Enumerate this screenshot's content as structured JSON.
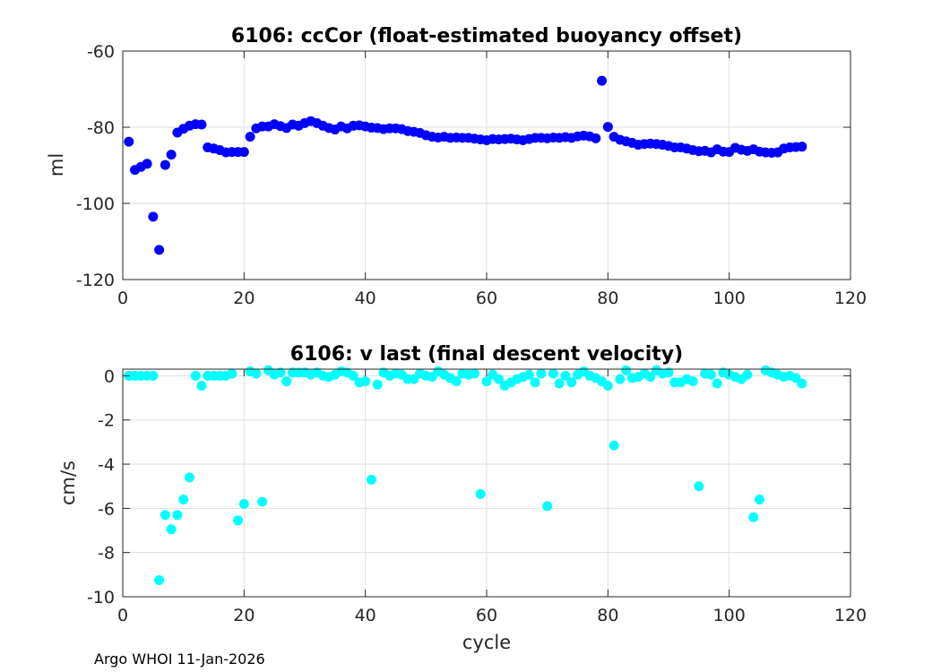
{
  "footer": "Argo WHOI 11-Jan-2026",
  "colors": {
    "top_marker": "#0000ff",
    "bottom_marker": "#00ffff",
    "axis": "#262626",
    "grid": "#dedede"
  },
  "chart_data": [
    {
      "type": "scatter",
      "title": "6106: ccCor (float-estimated buoyancy offset)",
      "xlabel": "",
      "ylabel": "ml",
      "xlim": [
        0,
        120
      ],
      "ylim": [
        -120,
        -60
      ],
      "xticks": [
        0,
        20,
        40,
        60,
        80,
        100,
        120
      ],
      "yticks": [
        -120,
        -100,
        -80,
        -60
      ],
      "grid": true,
      "series": [
        {
          "name": "ccCor",
          "x": [
            1,
            2,
            3,
            4,
            5,
            6,
            7,
            8,
            9,
            10,
            11,
            12,
            13,
            14,
            15,
            16,
            17,
            18,
            19,
            20,
            21,
            22,
            23,
            24,
            25,
            26,
            27,
            28,
            29,
            30,
            31,
            32,
            33,
            34,
            35,
            36,
            37,
            38,
            39,
            40,
            41,
            42,
            43,
            44,
            45,
            46,
            47,
            48,
            49,
            50,
            51,
            52,
            53,
            54,
            55,
            56,
            57,
            58,
            59,
            60,
            61,
            62,
            63,
            64,
            65,
            66,
            67,
            68,
            69,
            70,
            71,
            72,
            73,
            74,
            75,
            76,
            77,
            78,
            79,
            80,
            81,
            82,
            83,
            84,
            85,
            86,
            87,
            88,
            89,
            90,
            91,
            92,
            93,
            94,
            95,
            96,
            97,
            98,
            99,
            100,
            101,
            102,
            103,
            104,
            105,
            106,
            107,
            108,
            109,
            110,
            111,
            112
          ],
          "y": [
            -83.8,
            -91.2,
            -90.4,
            -89.6,
            -103.5,
            -112.2,
            -89.9,
            -87.2,
            -81.4,
            -80.4,
            -79.6,
            -79.2,
            -79.3,
            -85.3,
            -85.6,
            -86.0,
            -86.6,
            -86.5,
            -86.5,
            -86.5,
            -82.5,
            -80.3,
            -79.8,
            -79.8,
            -79.2,
            -79.7,
            -80.2,
            -79.3,
            -79.6,
            -78.9,
            -78.4,
            -78.9,
            -79.6,
            -80.2,
            -80.6,
            -79.8,
            -80.3,
            -79.6,
            -79.5,
            -79.8,
            -80.1,
            -80.2,
            -80.5,
            -80.3,
            -80.3,
            -80.5,
            -81.0,
            -81.2,
            -81.5,
            -82.1,
            -82.5,
            -82.7,
            -82.5,
            -82.8,
            -82.7,
            -82.8,
            -82.8,
            -83.0,
            -83.2,
            -83.4,
            -83.1,
            -83.2,
            -83.1,
            -83.0,
            -83.2,
            -83.4,
            -83.1,
            -82.8,
            -82.8,
            -82.9,
            -82.7,
            -82.8,
            -82.6,
            -82.8,
            -82.4,
            -82.2,
            -82.4,
            -82.9,
            -67.8,
            -79.9,
            -82.5,
            -83.3,
            -83.7,
            -84.1,
            -84.6,
            -84.4,
            -84.3,
            -84.4,
            -84.6,
            -84.9,
            -85.3,
            -85.3,
            -85.6,
            -86.0,
            -86.3,
            -86.2,
            -86.6,
            -85.8,
            -86.4,
            -86.5,
            -85.4,
            -85.9,
            -86.2,
            -85.8,
            -86.4,
            -86.6,
            -86.7,
            -86.6,
            -85.6,
            -85.3,
            -85.2,
            -85.1
          ]
        }
      ]
    },
    {
      "type": "scatter",
      "title": "6106: v last (final descent velocity)",
      "xlabel": "cycle",
      "ylabel": "cm/s",
      "xlim": [
        0,
        120
      ],
      "ylim": [
        -10,
        0.3
      ],
      "xticks": [
        0,
        20,
        40,
        60,
        80,
        100,
        120
      ],
      "yticks": [
        -10,
        -8,
        -6,
        -4,
        -2,
        0
      ],
      "grid": true,
      "series": [
        {
          "name": "v last",
          "x": [
            1,
            2,
            3,
            4,
            5,
            6,
            7,
            8,
            9,
            10,
            11,
            12,
            13,
            14,
            15,
            16,
            17,
            18,
            19,
            20,
            21,
            22,
            23,
            24,
            25,
            26,
            27,
            28,
            29,
            30,
            31,
            32,
            33,
            34,
            35,
            36,
            37,
            38,
            39,
            40,
            41,
            42,
            43,
            44,
            45,
            46,
            47,
            48,
            49,
            50,
            51,
            52,
            53,
            54,
            55,
            56,
            57,
            58,
            59,
            60,
            61,
            62,
            63,
            64,
            65,
            66,
            67,
            68,
            69,
            70,
            71,
            72,
            73,
            74,
            75,
            76,
            77,
            78,
            79,
            80,
            81,
            82,
            83,
            84,
            85,
            86,
            87,
            88,
            89,
            90,
            91,
            92,
            93,
            94,
            95,
            96,
            97,
            98,
            99,
            100,
            101,
            102,
            103,
            104,
            105,
            106,
            107,
            108,
            109,
            110,
            111,
            112
          ],
          "y": [
            0.0,
            0.0,
            0.0,
            0.0,
            0.0,
            -9.25,
            -6.3,
            -6.95,
            -6.3,
            -5.6,
            -4.6,
            0.0,
            -0.45,
            0.0,
            0.0,
            0.0,
            0.0,
            0.1,
            -6.55,
            -5.8,
            0.2,
            0.1,
            -5.7,
            0.25,
            0.05,
            0.15,
            -0.25,
            0.15,
            0.15,
            0.15,
            0.05,
            0.15,
            0.0,
            -0.05,
            0.05,
            0.2,
            0.15,
            0.0,
            -0.3,
            -0.25,
            -4.7,
            -0.4,
            0.15,
            0.0,
            0.1,
            0.05,
            -0.15,
            -0.15,
            0.1,
            0.0,
            -0.05,
            0.2,
            0.05,
            -0.1,
            -0.25,
            0.1,
            0.05,
            0.1,
            -5.35,
            -0.25,
            0.05,
            -0.15,
            -0.45,
            -0.3,
            -0.15,
            -0.05,
            0.05,
            -0.3,
            0.1,
            -5.9,
            0.1,
            -0.35,
            0.0,
            -0.3,
            0.05,
            0.2,
            0.0,
            -0.1,
            -0.25,
            -0.45,
            -3.15,
            -0.15,
            0.25,
            -0.1,
            -0.05,
            0.1,
            -0.05,
            0.25,
            0.1,
            0.15,
            -0.3,
            -0.3,
            -0.15,
            -0.25,
            -5.0,
            0.1,
            0.05,
            -0.35,
            0.15,
            0.05,
            -0.05,
            -0.15,
            0.05,
            -6.4,
            -5.6,
            0.25,
            0.15,
            0.05,
            -0.05,
            0.0,
            -0.1,
            -0.35
          ]
        }
      ]
    }
  ]
}
